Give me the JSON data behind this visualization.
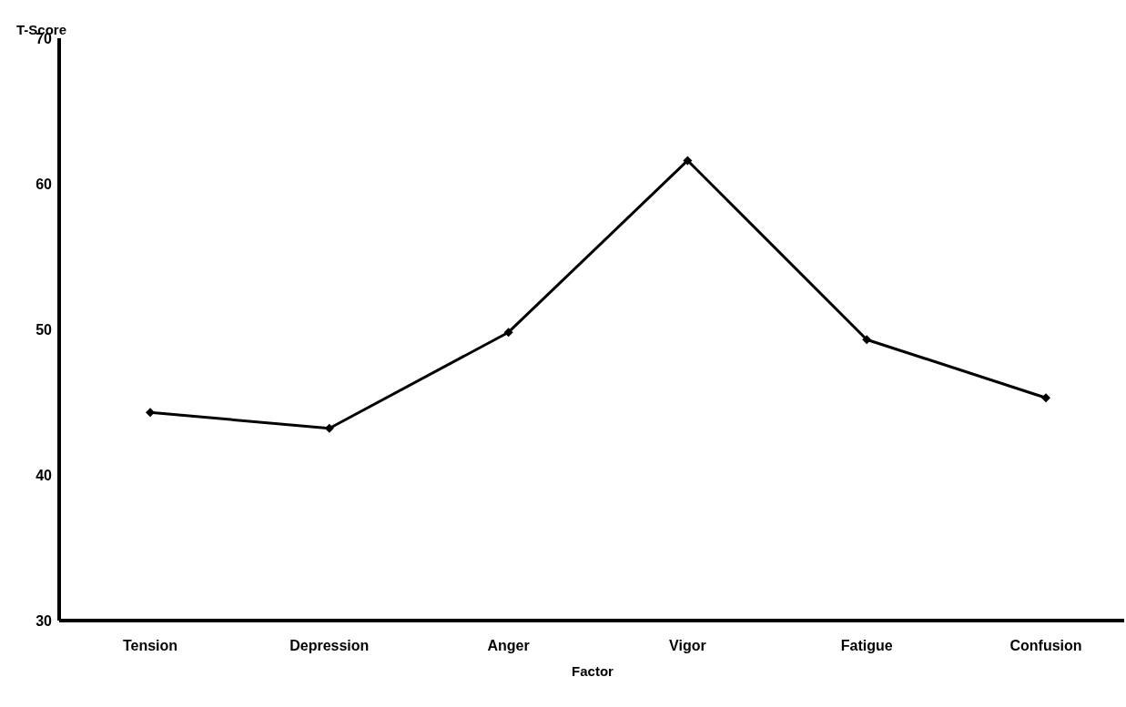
{
  "chart_data": {
    "type": "line",
    "xlabel": "Factor",
    "ylabel": "T-Score",
    "categories": [
      "Tension",
      "Depression",
      "Anger",
      "Vigor",
      "Fatigue",
      "Confusion"
    ],
    "series": [
      {
        "color": "#000000",
        "values": [
          44.3,
          43.2,
          49.8,
          61.6,
          49.3,
          45.3
        ]
      }
    ],
    "ylim": [
      30,
      70
    ],
    "yticks": [
      30,
      40,
      50,
      60,
      70
    ],
    "marker": "diamond",
    "line_style": "solid"
  }
}
